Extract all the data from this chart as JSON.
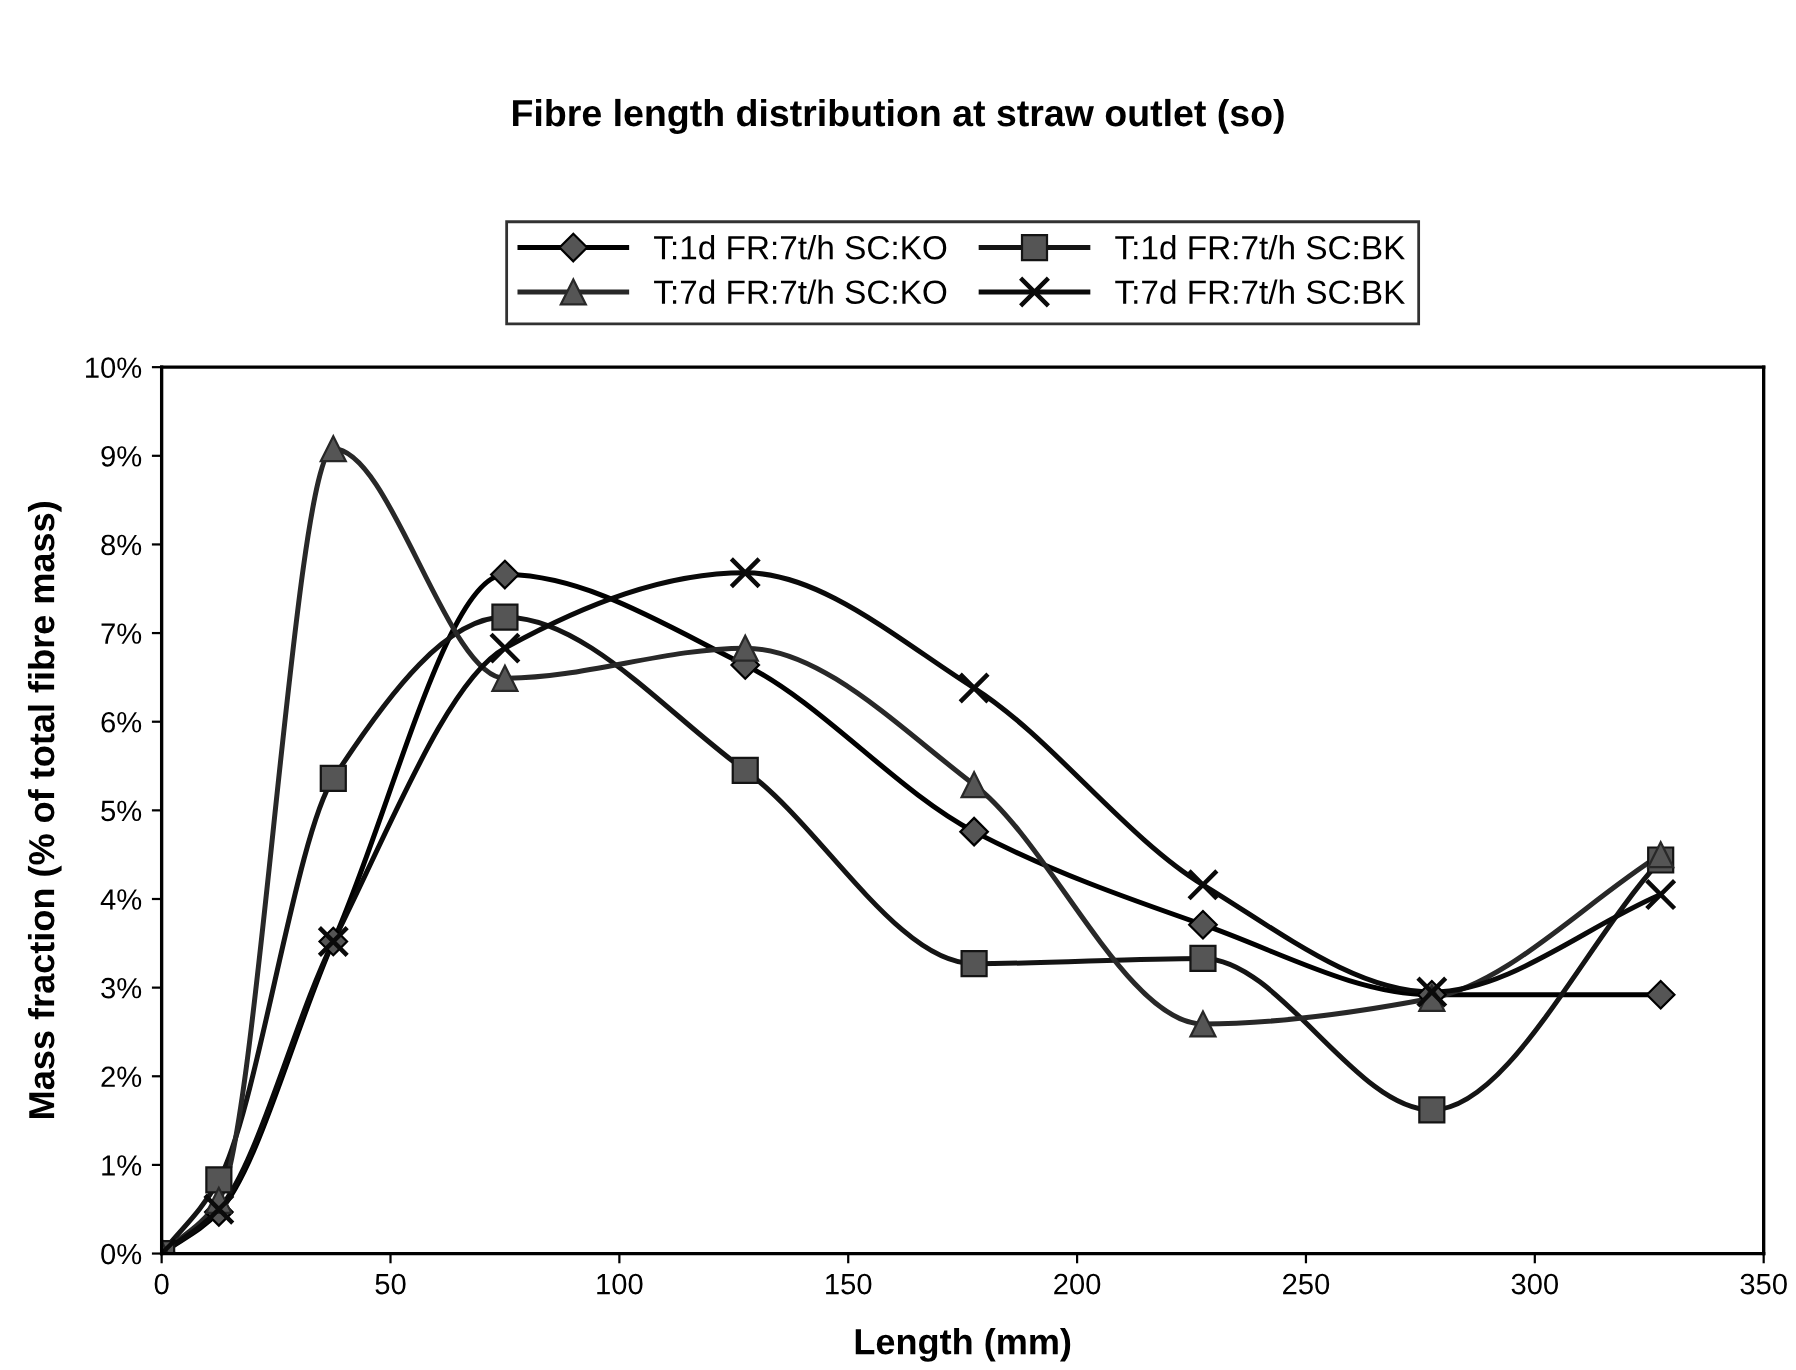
{
  "chart_data": {
    "type": "line",
    "title": "Fibre length distribution at straw outlet (so)",
    "xlabel": "Length (mm)",
    "ylabel": "Mass fraction (% of total fibre mass)",
    "x": [
      0,
      12.5,
      37.5,
      75,
      127.5,
      177.5,
      227.5,
      277.5,
      327.5
    ],
    "series": [
      {
        "name": "T:1d FR:7t/h SC:KO",
        "color": "#000000",
        "marker": "diamond",
        "values": [
          0,
          0.47,
          3.52,
          7.66,
          6.64,
          4.76,
          3.71,
          2.92,
          2.92
        ]
      },
      {
        "name": "T:1d FR:7t/h SC:BK",
        "color": "#141414",
        "marker": "square",
        "values": [
          0,
          0.83,
          5.36,
          7.18,
          5.45,
          3.27,
          3.33,
          1.62,
          4.44
        ]
      },
      {
        "name": "T:7d FR:7t/h SC:KO",
        "color": "#282828",
        "marker": "triangle",
        "values": [
          0,
          0.6,
          9.08,
          6.49,
          6.83,
          5.29,
          2.59,
          2.88,
          4.5
        ]
      },
      {
        "name": "T:7d FR:7t/h SC:BK",
        "color": "#0a0a0a",
        "marker": "cross",
        "values": [
          0,
          0.5,
          3.52,
          6.83,
          7.68,
          6.38,
          4.16,
          2.95,
          4.05
        ]
      }
    ],
    "xlim": [
      0,
      350
    ],
    "xticks": [
      0,
      50,
      100,
      150,
      200,
      250,
      300,
      350
    ],
    "ylim": [
      0,
      10
    ],
    "yticks": [
      {
        "value": 0,
        "label": "0%"
      },
      {
        "value": 1,
        "label": "1%"
      },
      {
        "value": 2,
        "label": "2%"
      },
      {
        "value": 3,
        "label": "3%"
      },
      {
        "value": 4,
        "label": "4%"
      },
      {
        "value": 5,
        "label": "5%"
      },
      {
        "value": 6,
        "label": "6%"
      },
      {
        "value": 7,
        "label": "7%"
      },
      {
        "value": 8,
        "label": "8%"
      },
      {
        "value": 9,
        "label": "9%"
      },
      {
        "value": 10,
        "label": "10%"
      }
    ],
    "grid": false,
    "legend": "top",
    "line_style": "solid"
  }
}
